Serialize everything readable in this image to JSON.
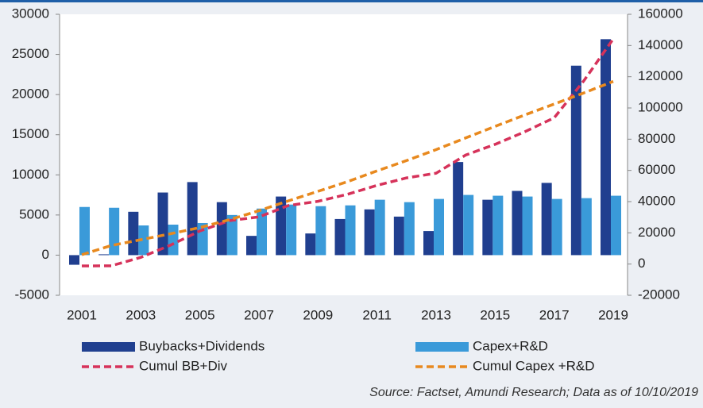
{
  "chart_data": {
    "type": "bar",
    "categories": [
      "2001",
      null,
      "2003",
      null,
      "2005",
      null,
      "2007",
      null,
      "2009",
      null,
      "2011",
      null,
      "2013",
      null,
      "2015",
      null,
      "2017",
      null,
      "2019"
    ],
    "series": [
      {
        "name": "Buybacks+Dividends",
        "color": "#203f8f",
        "values": [
          -1200,
          100,
          5400,
          7800,
          9100,
          6600,
          2400,
          7300,
          2700,
          4500,
          5700,
          4800,
          3000,
          11600,
          6900,
          8000,
          9000,
          23600,
          26900
        ]
      },
      {
        "name": "Capex+R&D",
        "color": "#3a9ad9",
        "values": [
          6000,
          5900,
          3700,
          3800,
          4000,
          5000,
          5800,
          6300,
          6100,
          6200,
          6900,
          6600,
          7000,
          7500,
          7400,
          7300,
          7000,
          7100,
          7400
        ]
      },
      {
        "name": "Cumul BB+Div",
        "color": "#d6325a",
        "type": "line",
        "dashed": true,
        "axis": "y2",
        "values": [
          -1200,
          -1100,
          4300,
          12100,
          21200,
          27800,
          30200,
          37500,
          40200,
          44700,
          50400,
          55200,
          58200,
          69800,
          76700,
          84700,
          93700,
          117300,
          144200
        ]
      },
      {
        "name": "Cumul Capex +R&D",
        "color": "#e8891e",
        "type": "line",
        "dashed": true,
        "axis": "y2",
        "values": [
          6000,
          11900,
          15600,
          19400,
          23400,
          28400,
          34200,
          40500,
          46600,
          52800,
          59700,
          66300,
          73300,
          80800,
          88200,
          95500,
          102500,
          109600,
          117000
        ]
      }
    ],
    "ylim": [
      -5000,
      30000
    ],
    "yticks": [
      30000,
      25000,
      20000,
      15000,
      10000,
      5000,
      0,
      -5000
    ],
    "y2lim": [
      -20000,
      160000
    ],
    "y2ticks": [
      160000,
      140000,
      120000,
      100000,
      80000,
      60000,
      40000,
      20000,
      0,
      -20000
    ],
    "source": "Source: Factset, Amundi Research; Data as of 10/10/2019"
  }
}
